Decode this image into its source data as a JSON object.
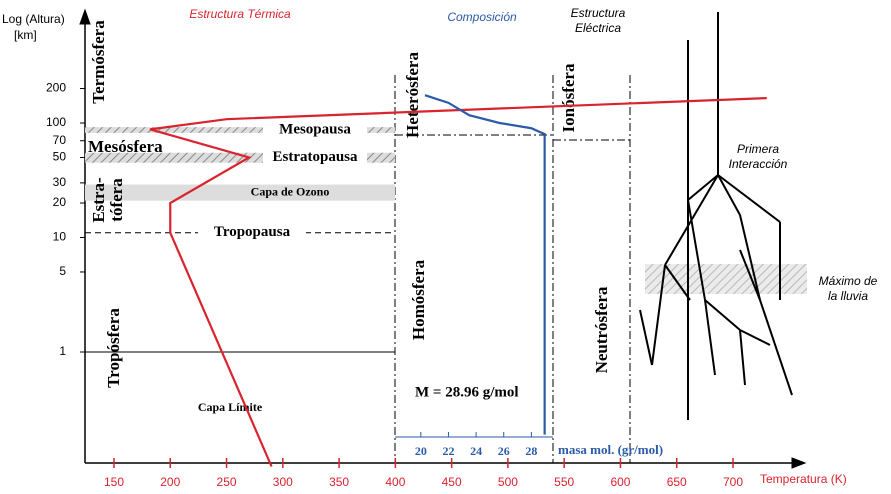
{
  "chart_data": {
    "type": "line",
    "ylabel": [
      "Log (Altura)",
      "[km]"
    ],
    "xlabel": "Temperatura (K)",
    "x2label": "masa mol. (gr/mol)",
    "headers": {
      "thermal": "Estructura Térmica",
      "composition": "Composición",
      "electric": [
        "Estructura",
        "Eléctrica"
      ]
    },
    "layer_labels": {
      "thermosphere": "Termósfera",
      "mesosphere": "Mesósfera",
      "stratosphere": [
        "Estra-",
        "tófera"
      ],
      "troposphere": "Tropósfera",
      "heterosphere": "Heterósfera",
      "homosphere": "Homósfera",
      "ionosphere": "Ionósfera",
      "neutrosphere": "Neutrósfera"
    },
    "annotations": {
      "boundary_layer": "Capa Límite",
      "molar_mass": "M = 28.96 g/mol",
      "first_interaction": [
        "Primera",
        "Interacción"
      ],
      "rain_max": [
        "Máximo de",
        "la lluvia"
      ]
    },
    "levels": [
      {
        "label": "Mesopausa",
        "range": [
          82,
          92
        ]
      },
      {
        "label": "Estratopausa",
        "range": [
          45,
          55
        ]
      },
      {
        "label": "Capa de Ozono",
        "range": [
          21,
          29
        ]
      },
      {
        "label": "Tropopausa",
        "value": 11
      }
    ],
    "xlim": [
      150,
      700
    ],
    "xticks": [
      150,
      200,
      250,
      300,
      350,
      400,
      450,
      500,
      550,
      600,
      650,
      700
    ],
    "ylim": [
      0.1,
      1000
    ],
    "log_y": true,
    "yticks": [
      1,
      5,
      10,
      20,
      30,
      50,
      70,
      100,
      200
    ],
    "x2lim": [
      18,
      30
    ],
    "x2ticks": [
      20,
      22,
      24,
      26,
      28
    ],
    "series": [
      {
        "color": "#d9232d",
        "x": [
          290,
          200,
          200,
          270,
          182,
          250,
          730
        ],
        "values": [
          0.1,
          11,
          20,
          50,
          88,
          108,
          165
        ]
      },
      {
        "color": "#2b5ba8",
        "axis": "x2",
        "x": [
          20.3,
          22,
          23.5,
          25.7,
          28,
          28.96,
          28.96
        ],
        "values": [
          175,
          150,
          117,
          100,
          90,
          80,
          0.19
        ]
      }
    ]
  }
}
